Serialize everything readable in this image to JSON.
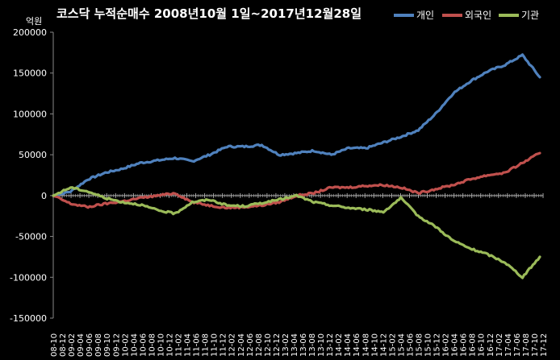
{
  "chart_data": {
    "type": "line",
    "title": "코스닥 누적순매수 2008년10월 1일~2017년12월28일",
    "ylabel": "억원",
    "xlabel": "",
    "ylim": [
      -150000,
      200000
    ],
    "yticks": [
      "200000",
      "150000",
      "100000",
      "50000",
      "0",
      "-50000",
      "-100000",
      "-150000"
    ],
    "ytick_values": [
      200000,
      150000,
      100000,
      50000,
      0,
      -50000,
      -100000,
      -150000
    ],
    "grid": false,
    "legend_position": "top-right",
    "x": [
      "08-10",
      "09-02",
      "09-06",
      "09-10",
      "10-02",
      "10-06",
      "10-10",
      "11-02",
      "11-06",
      "11-10",
      "12-02",
      "12-06",
      "12-10",
      "13-02",
      "13-06",
      "13-10",
      "14-02",
      "14-06",
      "14-10",
      "15-02",
      "15-06",
      "15-10",
      "16-02",
      "16-06",
      "16-10",
      "17-02",
      "17-06",
      "17-10",
      "17-12"
    ],
    "xticks": [
      "08-10",
      "08-12",
      "09-02",
      "09-04",
      "09-06",
      "09-08",
      "09-10",
      "09-12",
      "10-02",
      "10-04",
      "10-06",
      "10-08",
      "10-10",
      "10-12",
      "11-02",
      "11-04",
      "11-06",
      "11-08",
      "11-10",
      "11-12",
      "12-02",
      "12-04",
      "12-06",
      "12-08",
      "12-10",
      "12-12",
      "13-02",
      "13-04",
      "13-06",
      "13-08",
      "13-10",
      "13-12",
      "14-02",
      "14-04",
      "14-06",
      "14-08",
      "14-10",
      "14-12",
      "15-02",
      "15-04",
      "15-06",
      "15-08",
      "15-10",
      "15-12",
      "16-02",
      "16-04",
      "16-06",
      "16-08",
      "16-10",
      "16-12",
      "17-02",
      "17-04",
      "17-06",
      "17-08",
      "17-10",
      "17-12"
    ],
    "series": [
      {
        "name": "개인",
        "color": "#4F81BD",
        "values": [
          0,
          5000,
          20000,
          28000,
          33000,
          40000,
          43000,
          46000,
          42000,
          50000,
          60000,
          60000,
          62000,
          50000,
          52000,
          55000,
          50000,
          58000,
          58000,
          65000,
          72000,
          80000,
          100000,
          125000,
          140000,
          152000,
          160000,
          172000,
          145000
        ]
      },
      {
        "name": "외국인",
        "color": "#C0504D",
        "values": [
          0,
          -10000,
          -14000,
          -10000,
          -7000,
          -3000,
          0,
          3000,
          -8000,
          -12000,
          -15000,
          -14000,
          -12000,
          -8000,
          0,
          3000,
          10000,
          10000,
          12000,
          13000,
          10000,
          3000,
          8000,
          13000,
          20000,
          25000,
          28000,
          40000,
          52000
        ]
      },
      {
        "name": "기관",
        "color": "#9BBB59",
        "values": [
          0,
          10000,
          5000,
          -3000,
          -8000,
          -11000,
          -18000,
          -22000,
          -8000,
          -5000,
          -12000,
          -13000,
          -9000,
          -5000,
          0,
          -8000,
          -12000,
          -15000,
          -17000,
          -20000,
          -3000,
          -25000,
          -38000,
          -55000,
          -65000,
          -72000,
          -82000,
          -100000,
          -75000
        ]
      }
    ]
  }
}
